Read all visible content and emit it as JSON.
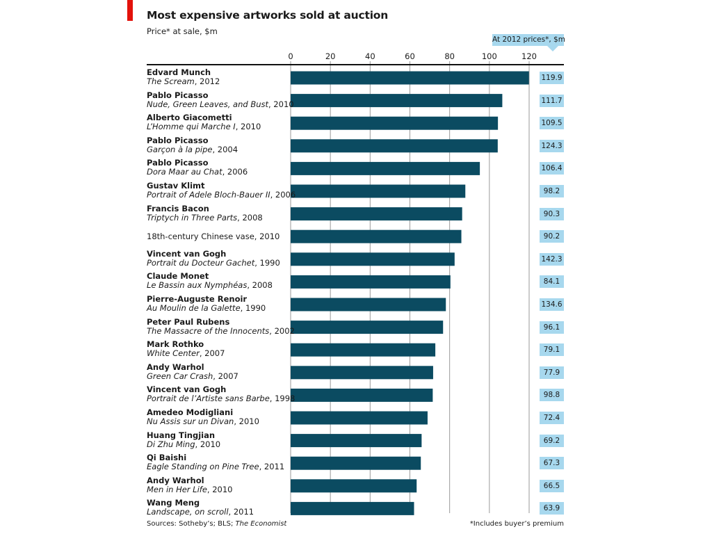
{
  "title": "Most expensive artworks sold at auction",
  "subtitle": "Price* at sale, $m",
  "secondary_header": "At 2012 prices*, $m",
  "source_prefix": "Sources: Sotheby’s; BLS; ",
  "source_publication": "The Economist",
  "footnote": "*Includes buyer’s premium",
  "colors": {
    "bar": "#0b4b61",
    "tag": "#a7d8ee",
    "accent": "#e3120b",
    "gridline": "#9a9a9a"
  },
  "chart_data": {
    "type": "bar",
    "orientation": "horizontal",
    "title": "Most expensive artworks sold at auction",
    "subtitle": "Price* at sale, $m",
    "xlim": [
      0,
      120
    ],
    "xticks": [
      0,
      20,
      40,
      60,
      80,
      100,
      120
    ],
    "grid": true,
    "axis_position": "top",
    "items": [
      {
        "artist": "Edvard Munch",
        "work": "The Scream",
        "year": ", 2012",
        "value": 119.9,
        "value_2012": "119.9"
      },
      {
        "artist": "Pablo Picasso",
        "work": "Nude, Green Leaves, and Bust",
        "year": ", 2010",
        "value": 106.5,
        "value_2012": "111.7"
      },
      {
        "artist": "Alberto Giacometti",
        "work": "L’Homme qui Marche I",
        "year": ", 2010",
        "value": 104.3,
        "value_2012": "109.5"
      },
      {
        "artist": "Pablo Picasso",
        "work": "Garçon à la pipe",
        "year": ", 2004",
        "value": 104.2,
        "value_2012": "124.3"
      },
      {
        "artist": "Pablo Picasso",
        "work": "Dora Maar au Chat",
        "year": ", 2006",
        "value": 95.2,
        "value_2012": "106.4"
      },
      {
        "artist": "Gustav Klimt",
        "work": "Portrait of Adele Bloch-Bauer II",
        "year": ", 2006",
        "value": 87.9,
        "value_2012": "98.2"
      },
      {
        "artist": "Francis Bacon",
        "work": "Triptych in Three Parts",
        "year": ", 2008",
        "value": 86.3,
        "value_2012": "90.3"
      },
      {
        "artist": "",
        "work": "",
        "year": "18th-century Chinese vase, 2010",
        "value": 85.9,
        "value_2012": "90.2"
      },
      {
        "artist": "Vincent van Gogh",
        "work": "Portrait du Docteur Gachet",
        "year": ", 1990",
        "value": 82.5,
        "value_2012": "142.3"
      },
      {
        "artist": "Claude Monet",
        "work": "Le Bassin aux Nymphéas",
        "year": ", 2008",
        "value": 80.4,
        "value_2012": "84.1"
      },
      {
        "artist": "Pierre-Auguste Renoir",
        "work": "Au Moulin de la Galette",
        "year": ", 1990",
        "value": 78.1,
        "value_2012": "134.6"
      },
      {
        "artist": "Peter Paul Rubens",
        "work": "The Massacre of the Innocents",
        "year": ", 2002",
        "value": 76.7,
        "value_2012": "96.1"
      },
      {
        "artist": "Mark Rothko",
        "work": "White Center",
        "year": ", 2007",
        "value": 72.8,
        "value_2012": "79.1"
      },
      {
        "artist": "Andy Warhol",
        "work": "Green Car Crash",
        "year": ", 2007",
        "value": 71.7,
        "value_2012": "77.9"
      },
      {
        "artist": "Vincent van Gogh",
        "work": "Portrait de l’Artiste sans Barbe",
        "year": ", 1998",
        "value": 71.5,
        "value_2012": "98.8"
      },
      {
        "artist": "Amedeo Modigliani",
        "work": "Nu Assis sur un Divan",
        "year": ", 2010",
        "value": 68.9,
        "value_2012": "72.4"
      },
      {
        "artist": "Huang Tingjian",
        "work": "Di Zhu Ming",
        "year": ", 2010",
        "value": 65.9,
        "value_2012": "69.2"
      },
      {
        "artist": "Qi Baishi",
        "work": "Eagle Standing on Pine Tree",
        "year": ", 2011",
        "value": 65.5,
        "value_2012": "67.3"
      },
      {
        "artist": "Andy Warhol",
        "work": "Men in Her Life",
        "year": ", 2010",
        "value": 63.4,
        "value_2012": "66.5"
      },
      {
        "artist": "Wang Meng",
        "work": "Landscape, on scroll",
        "year": ", 2011",
        "value": 62.1,
        "value_2012": "63.9"
      }
    ]
  }
}
